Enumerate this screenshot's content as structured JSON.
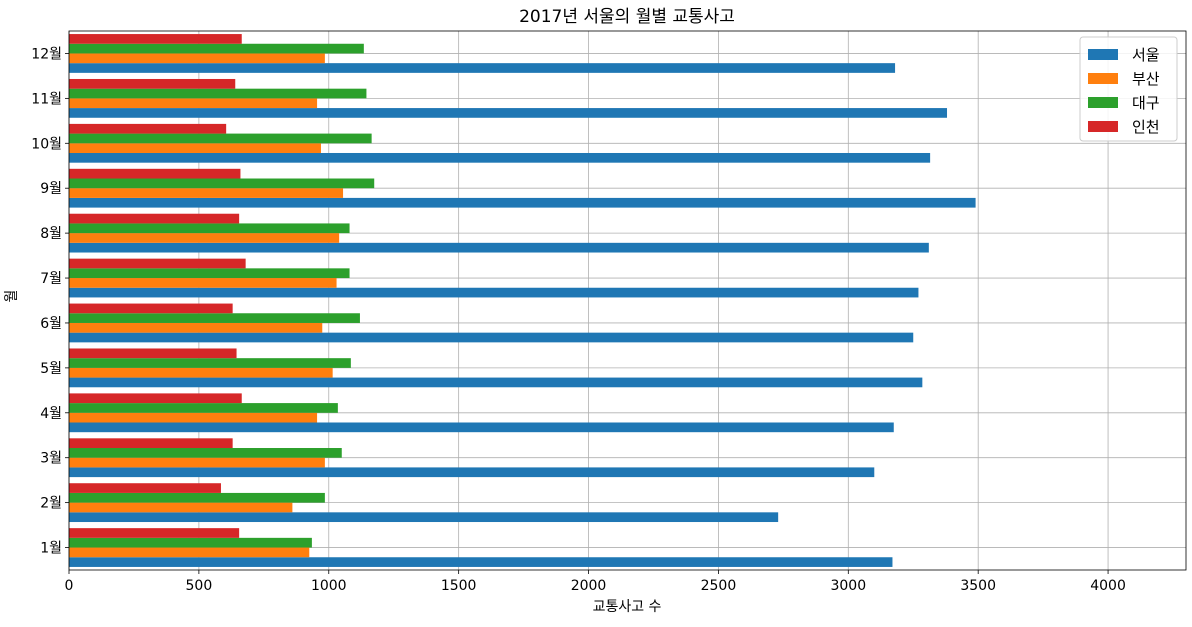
{
  "chart_data": {
    "type": "bar",
    "orientation": "horizontal",
    "title": "2017년 서울의 월별 교통사고",
    "xlabel": "교통사고 수",
    "ylabel": "월",
    "xlim": [
      0,
      4300
    ],
    "xticks": [
      0,
      500,
      1000,
      1500,
      2000,
      2500,
      3000,
      3500,
      4000
    ],
    "grid": true,
    "legend_position": "top-right",
    "categories": [
      "1월",
      "2월",
      "3월",
      "4월",
      "5월",
      "6월",
      "7월",
      "8월",
      "9월",
      "10월",
      "11월",
      "12월"
    ],
    "series": [
      {
        "name": "서울",
        "color": "#1f77b4",
        "values": [
          3170,
          2730,
          3100,
          3175,
          3285,
          3250,
          3270,
          3310,
          3490,
          3315,
          3380,
          3180
        ]
      },
      {
        "name": "부산",
        "color": "#ff7f0e",
        "values": [
          925,
          860,
          985,
          955,
          1015,
          975,
          1030,
          1040,
          1055,
          970,
          955,
          985
        ]
      },
      {
        "name": "대구",
        "color": "#2ca02c",
        "values": [
          935,
          985,
          1050,
          1035,
          1085,
          1120,
          1080,
          1080,
          1175,
          1165,
          1145,
          1135
        ]
      },
      {
        "name": "인천",
        "color": "#d62728",
        "values": [
          655,
          585,
          630,
          665,
          645,
          630,
          680,
          655,
          660,
          605,
          640,
          665
        ]
      }
    ]
  }
}
